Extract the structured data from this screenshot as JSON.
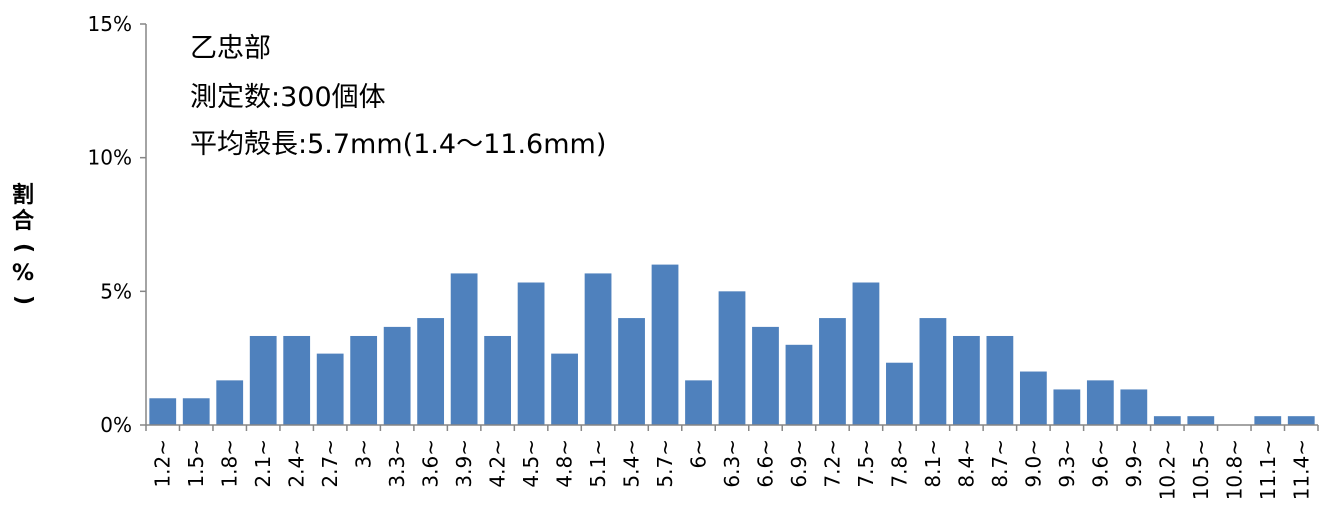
{
  "chart_data": {
    "type": "bar",
    "annotations": [
      "乙忠部",
      "測定数:300個体",
      "平均殻長:5.7mm(1.4〜11.6mm)"
    ],
    "ylabel": "割合(%)",
    "ylim": [
      0,
      15
    ],
    "yticks": [
      "0%",
      "5%",
      "10%",
      "15%"
    ],
    "categories": [
      "1.2~",
      "1.5~",
      "1.8~",
      "2.1~",
      "2.4~",
      "2.7~",
      "3~",
      "3.3~",
      "3.6~",
      "3.9~",
      "4.2~",
      "4.5~",
      "4.8~",
      "5.1~",
      "5.4~",
      "5.7~",
      "6~",
      "6.3~",
      "6.6~",
      "6.9~",
      "7.2~",
      "7.5~",
      "7.8~",
      "8.1~",
      "8.4~",
      "8.7~",
      "9.0~",
      "9.3~",
      "9.6~",
      "9.9~",
      "10.2~",
      "10.5~",
      "10.8~",
      "11.1~",
      "11.4~"
    ],
    "values": [
      1.0,
      1.0,
      1.67,
      3.33,
      3.33,
      2.67,
      3.33,
      3.67,
      4.0,
      5.67,
      3.33,
      5.33,
      2.67,
      5.67,
      4.0,
      6.0,
      1.67,
      5.0,
      3.67,
      3.0,
      4.0,
      5.33,
      2.33,
      4.0,
      3.33,
      3.33,
      2.0,
      1.33,
      1.67,
      1.33,
      0.33,
      0.33,
      0,
      0.33,
      0.33
    ],
    "bar_color": "#4F81BD",
    "grid": false,
    "legend": "none"
  }
}
